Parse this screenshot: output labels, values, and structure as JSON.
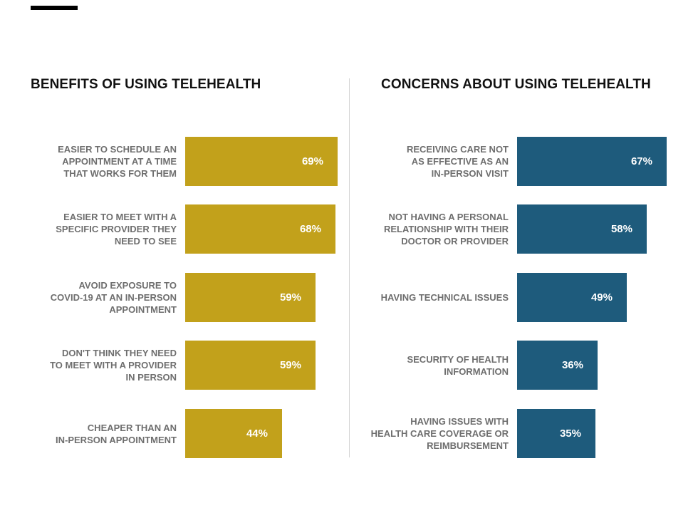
{
  "colors": {
    "benefits": "#c2a11b",
    "concerns": "#1e5b7c"
  },
  "chart_data": [
    {
      "type": "bar",
      "orientation": "horizontal",
      "title": "BENEFITS OF USING TELEHEALTH",
      "categories": [
        "EASIER TO SCHEDULE AN APPOINTMENT AT A TIME THAT WORKS FOR THEM",
        "EASIER TO MEET WITH A SPECIFIC PROVIDER THEY NEED TO SEE",
        "AVOID EXPOSURE TO COVID-19 AT AN IN-PERSON APPOINTMENT",
        "DON'T THINK THEY NEED TO MEET WITH A PROVIDER IN PERSON",
        "CHEAPER THAN AN IN-PERSON APPOINTMENT"
      ],
      "values": [
        69,
        68,
        59,
        59,
        44
      ],
      "value_labels": [
        "69%",
        "68%",
        "59%",
        "59%",
        "44%"
      ],
      "xlim": [
        0,
        70
      ],
      "grid": false,
      "legend": "none"
    },
    {
      "type": "bar",
      "orientation": "horizontal",
      "title": "CONCERNS ABOUT USING TELEHEALTH",
      "categories": [
        "RECEIVING CARE NOT AS EFFECTIVE AS AN IN-PERSON VISIT",
        "NOT HAVING A PERSONAL RELATIONSHIP WITH THEIR DOCTOR OR PROVIDER",
        "HAVING TECHNICAL ISSUES",
        "SECURITY OF HEALTH INFORMATION",
        "HAVING ISSUES WITH HEALTH CARE COVERAGE OR REIMBURSEMENT"
      ],
      "values": [
        67,
        58,
        49,
        36,
        35
      ],
      "value_labels": [
        "67%",
        "58%",
        "49%",
        "36%",
        "35%"
      ],
      "xlim": [
        0,
        67
      ],
      "grid": false,
      "legend": "none"
    }
  ]
}
